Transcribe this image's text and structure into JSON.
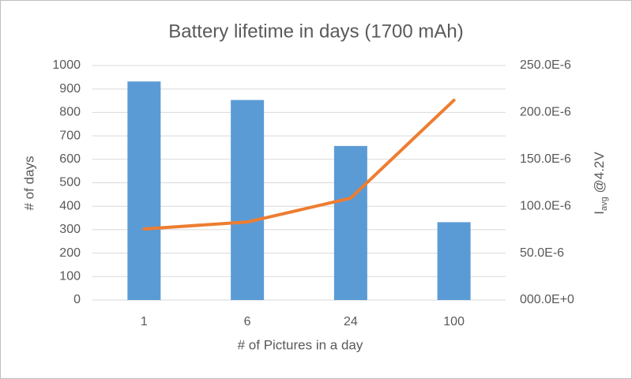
{
  "chart_data": {
    "type": "bar",
    "title": "Battery lifetime in days (1700 mAh)",
    "xlabel": "# of Pictures in a day",
    "ylabel": "# of days",
    "y2label": {
      "main": "I",
      "sub": "avg",
      "rest": " @4.2V"
    },
    "categories": [
      "1",
      "6",
      "24",
      "100"
    ],
    "series": [
      {
        "color": "#5b9bd5",
        "values": [
          932,
          853,
          657,
          332
        ]
      },
      {
        "color": "#ed7d31",
        "type": "line",
        "axis": "y2",
        "values": [
          7.58e-05,
          8.32e-05,
          0.0001086,
          0.000213
        ]
      }
    ],
    "ylim": [
      0,
      1000
    ],
    "yticks": [
      0,
      100,
      200,
      300,
      400,
      500,
      600,
      700,
      800,
      900,
      1000
    ],
    "y2lim": [
      0,
      0.00025
    ],
    "y2ticks": [
      {
        "value": 0,
        "label": "000.0E+0"
      },
      {
        "value": 5e-05,
        "label": "50.0E-6"
      },
      {
        "value": 0.0001,
        "label": "100.0E-6"
      },
      {
        "value": 0.00015,
        "label": "150.0E-6"
      },
      {
        "value": 0.0002,
        "label": "200.0E-6"
      },
      {
        "value": 0.00025,
        "label": "250.0E-6"
      }
    ],
    "grid": true
  }
}
